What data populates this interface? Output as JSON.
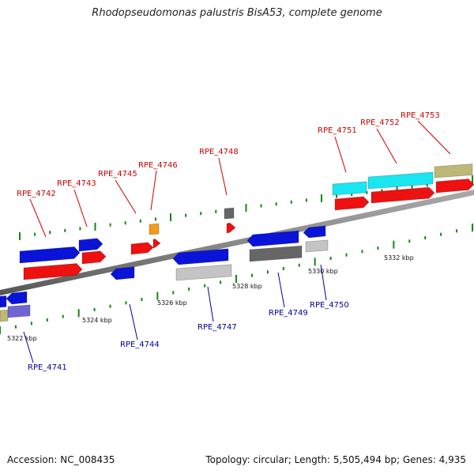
{
  "title": "Rhodopseudomonas palustris BisA53, complete genome",
  "footer": {
    "accession": "Accession: NC_008435",
    "topology": "Topology: circular; Length: 5,505,494 bp; Genes: 4,935"
  },
  "scale_labels": [
    "5322 kbp",
    "5324 kbp",
    "5326 kbp",
    "5328 kbp",
    "5330 kbp",
    "5332 kbp"
  ],
  "top_genes": [
    "RPE_4742",
    "RPE_4743",
    "RPE_4745",
    "RPE_4746",
    "RPE_4748",
    "RPE_4751",
    "RPE_4752",
    "RPE_4753"
  ],
  "bottom_genes": [
    "RPE_4741",
    "RPE_4744",
    "RPE_4747",
    "RPE_4749",
    "RPE_4750"
  ],
  "colors": {
    "label_top": "#cc0000",
    "label_bottom": "#000099",
    "blue_feature": "#0a14d8",
    "red_feature": "#ee1111",
    "cyan_feature": "#19e6f0",
    "gray_feature": "#666666",
    "lightgray_feature": "#c4c4c4",
    "olive_feature": "#bdb877",
    "orange_feature": "#f59a1a",
    "purple_feature": "#6f66d4",
    "tick_green": "#118811",
    "backbone": "#888888"
  }
}
